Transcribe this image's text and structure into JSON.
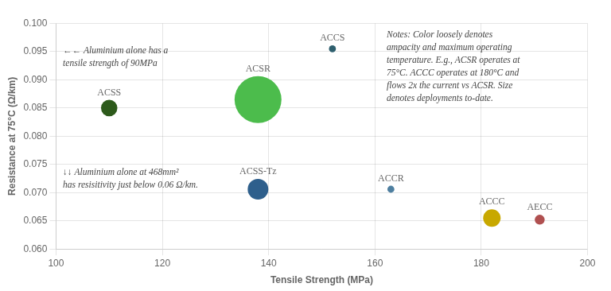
{
  "chart_data": {
    "type": "bubble",
    "xlabel": "Tensile Strength (MPa)",
    "ylabel": "Resistance at 75°C (Ω/km)",
    "points": [
      {
        "label": "ACSS",
        "x": 110,
        "y": 0.085,
        "size": 220,
        "color": "#2d5a1b"
      },
      {
        "label": "ACSR",
        "x": 138,
        "y": 0.0865,
        "size": 1800,
        "color": "#4cbc4c"
      },
      {
        "label": "ACCS",
        "x": 152,
        "y": 0.0955,
        "size": 40,
        "color": "#2e5f6e"
      },
      {
        "label": "ACSS-Tz",
        "x": 138,
        "y": 0.0706,
        "size": 350,
        "color": "#2e5f8c"
      },
      {
        "label": "ACCR",
        "x": 163,
        "y": 0.0706,
        "size": 40,
        "color": "#4e7fa0"
      },
      {
        "label": "ACCC",
        "x": 182,
        "y": 0.0655,
        "size": 250,
        "color": "#c8a800"
      },
      {
        "label": "AECC",
        "x": 191,
        "y": 0.0652,
        "size": 80,
        "color": "#b05050"
      }
    ],
    "xlim": [
      100,
      200
    ],
    "ylim": [
      0.06,
      0.1
    ],
    "xticks": [
      100,
      120,
      140,
      160,
      180,
      200
    ],
    "yticks": [
      {
        "value": 0.06,
        "label": "0.060"
      },
      {
        "value": 0.065,
        "label": "0.065"
      },
      {
        "value": 0.07,
        "label": "0.070"
      },
      {
        "value": 0.075,
        "label": "0.075"
      },
      {
        "value": 0.08,
        "label": "0.080"
      },
      {
        "value": 0.085,
        "label": "0.085"
      },
      {
        "value": 0.09,
        "label": "0.090"
      },
      {
        "value": 0.095,
        "label": "0.095"
      },
      {
        "value": 0.1,
        "label": "0.100"
      }
    ],
    "grid": true,
    "annotations": [
      {
        "lines": [
          "←← Aluminium alone has a",
          "tensile strength of 90MPa"
        ]
      },
      {
        "lines": [
          "↓↓ Aluminium alone at 468mm²",
          "has resisitivity just below 0.06 Ω/km."
        ]
      },
      {
        "lines": [
          "Notes: Color loosely denotes",
          "ampacity and maximum operating",
          "temperature. E.g., ACSR operates at",
          "75°C. ACCC operates at 180°C and",
          "flows 2x the current vs ACSR. Size",
          "denotes deployments to-date."
        ]
      }
    ]
  }
}
